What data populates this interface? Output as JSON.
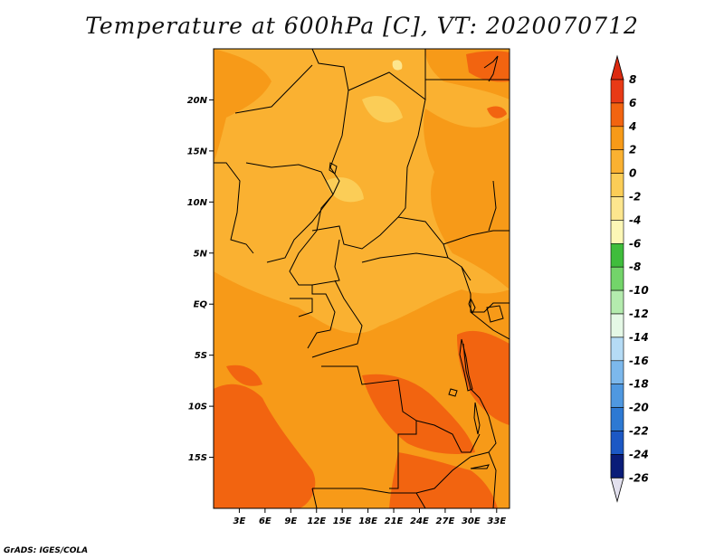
{
  "title": "Temperature at 600hPa [C], VT: 2020070712",
  "credit": "GrADS: IGES/COLA",
  "map": {
    "lon_range": [
      0,
      34.5
    ],
    "lat_range": [
      -20,
      25
    ],
    "lat_ticks": [
      {
        "value": 20,
        "label": "20N"
      },
      {
        "value": 15,
        "label": "15N"
      },
      {
        "value": 10,
        "label": "10N"
      },
      {
        "value": 5,
        "label": "5N"
      },
      {
        "value": 0,
        "label": "EQ"
      },
      {
        "value": -5,
        "label": "5S"
      },
      {
        "value": -10,
        "label": "10S"
      },
      {
        "value": -15,
        "label": "15S"
      }
    ],
    "lon_ticks": [
      {
        "value": 3,
        "label": "3E"
      },
      {
        "value": 6,
        "label": "6E"
      },
      {
        "value": 9,
        "label": "9E"
      },
      {
        "value": 12,
        "label": "12E"
      },
      {
        "value": 15,
        "label": "15E"
      },
      {
        "value": 18,
        "label": "18E"
      },
      {
        "value": 21,
        "label": "21E"
      },
      {
        "value": 24,
        "label": "24E"
      },
      {
        "value": 27,
        "label": "27E"
      },
      {
        "value": 30,
        "label": "30E"
      },
      {
        "value": 33,
        "label": "33E"
      }
    ]
  },
  "colorbar": {
    "levels": [
      {
        "label": "8",
        "color": "#e83a16"
      },
      {
        "label": "6",
        "color": "#f26410"
      },
      {
        "label": "4",
        "color": "#f79a18"
      },
      {
        "label": "2",
        "color": "#fab131"
      },
      {
        "label": "0",
        "color": "#fbcd57"
      },
      {
        "label": "-2",
        "color": "#fde68e"
      },
      {
        "label": "-4",
        "color": "#fcf7b6"
      },
      {
        "label": "-6",
        "color": "#3fbd3c"
      },
      {
        "label": "-8",
        "color": "#73d46a"
      },
      {
        "label": "-10",
        "color": "#b4ebae"
      },
      {
        "label": "-12",
        "color": "#e5f8e6"
      },
      {
        "label": "-14",
        "color": "#b5dbf5"
      },
      {
        "label": "-16",
        "color": "#7cb8ec"
      },
      {
        "label": "-18",
        "color": "#4f98e0"
      },
      {
        "label": "-20",
        "color": "#2d79d3"
      },
      {
        "label": "-22",
        "color": "#1c58c4"
      },
      {
        "label": "-24",
        "color": "#0f3a9e"
      },
      {
        "label": "-26",
        "color": "#0a1c78"
      }
    ],
    "top_color": "#dc2a10",
    "bottom_color": "#e2e0ee"
  }
}
